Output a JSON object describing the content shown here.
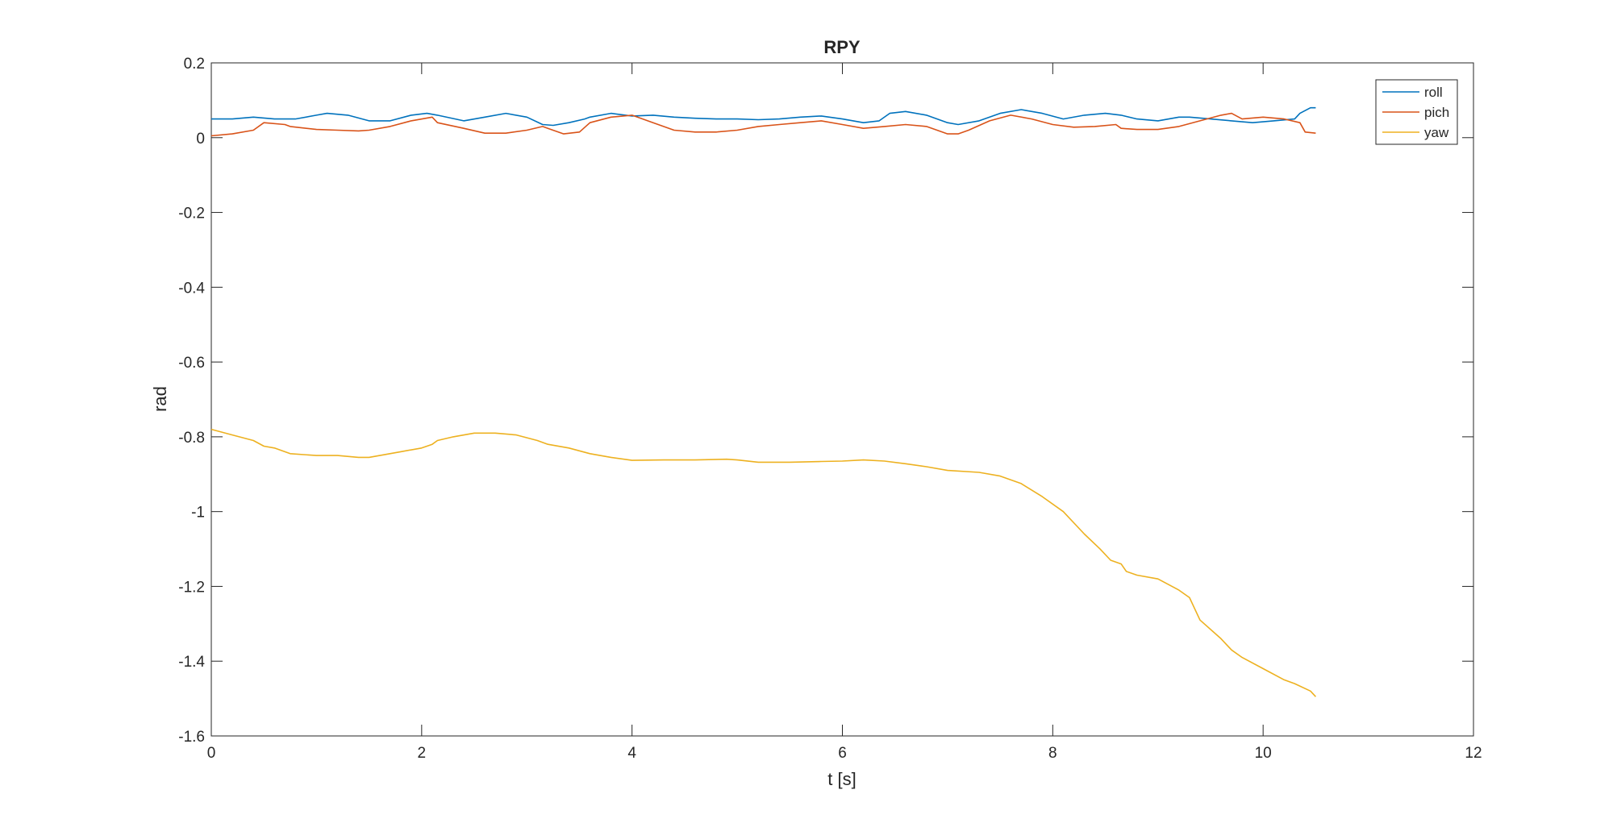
{
  "chart_data": {
    "type": "line",
    "title": "RPY",
    "xlabel": "t [s]",
    "ylabel": "rad",
    "xlim": [
      0,
      12
    ],
    "ylim": [
      -1.6,
      0.2
    ],
    "xticks": [
      0,
      2,
      4,
      6,
      8,
      10,
      12
    ],
    "xtick_labels": [
      "0",
      "2",
      "4",
      "6",
      "8",
      "10",
      "12"
    ],
    "yticks": [
      0.2,
      0,
      -0.2,
      -0.4,
      -0.6,
      -0.8,
      -1,
      -1.2,
      -1.4,
      -1.6
    ],
    "ytick_labels": [
      "0.2",
      "0",
      "-0.2",
      "-0.4",
      "-0.6",
      "-0.8",
      "-1",
      "-1.2",
      "-1.4",
      "-1.6"
    ],
    "grid": false,
    "legend_position": "top-right",
    "series": [
      {
        "name": "roll",
        "color": "#0072BD",
        "x": [
          0,
          0.2,
          0.4,
          0.6,
          0.8,
          1.0,
          1.1,
          1.3,
          1.5,
          1.7,
          1.9,
          2.05,
          2.15,
          2.4,
          2.6,
          2.8,
          3.0,
          3.15,
          3.25,
          3.4,
          3.55,
          3.6,
          3.8,
          4.0,
          4.2,
          4.4,
          4.6,
          4.8,
          5.0,
          5.2,
          5.4,
          5.6,
          5.8,
          6.0,
          6.2,
          6.35,
          6.45,
          6.6,
          6.8,
          7.0,
          7.1,
          7.3,
          7.5,
          7.7,
          7.9,
          8.1,
          8.3,
          8.5,
          8.65,
          8.8,
          9.0,
          9.2,
          9.3,
          9.5,
          9.7,
          9.9,
          10.1,
          10.3,
          10.35,
          10.45,
          10.5
        ],
        "values": [
          0.05,
          0.05,
          0.055,
          0.05,
          0.05,
          0.06,
          0.065,
          0.06,
          0.045,
          0.045,
          0.06,
          0.065,
          0.06,
          0.045,
          0.055,
          0.065,
          0.055,
          0.035,
          0.033,
          0.04,
          0.05,
          0.055,
          0.065,
          0.058,
          0.06,
          0.055,
          0.052,
          0.05,
          0.05,
          0.048,
          0.05,
          0.055,
          0.058,
          0.05,
          0.04,
          0.045,
          0.065,
          0.07,
          0.06,
          0.04,
          0.035,
          0.045,
          0.065,
          0.075,
          0.065,
          0.05,
          0.06,
          0.065,
          0.06,
          0.05,
          0.045,
          0.055,
          0.055,
          0.05,
          0.045,
          0.04,
          0.045,
          0.05,
          0.065,
          0.08,
          0.08
        ]
      },
      {
        "name": "pich",
        "color": "#D95319",
        "x": [
          0,
          0.2,
          0.4,
          0.5,
          0.7,
          0.75,
          1.0,
          1.2,
          1.4,
          1.5,
          1.7,
          1.9,
          2.1,
          2.15,
          2.4,
          2.6,
          2.8,
          3.0,
          3.15,
          3.2,
          3.35,
          3.5,
          3.6,
          3.8,
          4.0,
          4.2,
          4.4,
          4.6,
          4.8,
          5.0,
          5.2,
          5.4,
          5.6,
          5.8,
          6.0,
          6.2,
          6.4,
          6.6,
          6.8,
          6.9,
          7.0,
          7.1,
          7.2,
          7.4,
          7.6,
          7.8,
          8.0,
          8.2,
          8.4,
          8.6,
          8.65,
          8.8,
          9.0,
          9.2,
          9.4,
          9.6,
          9.7,
          9.8,
          10.0,
          10.2,
          10.35,
          10.4,
          10.5
        ],
        "values": [
          0.005,
          0.01,
          0.02,
          0.04,
          0.035,
          0.03,
          0.022,
          0.02,
          0.018,
          0.02,
          0.03,
          0.045,
          0.055,
          0.04,
          0.025,
          0.012,
          0.012,
          0.02,
          0.03,
          0.025,
          0.01,
          0.015,
          0.04,
          0.055,
          0.06,
          0.04,
          0.02,
          0.015,
          0.015,
          0.02,
          0.03,
          0.035,
          0.04,
          0.045,
          0.035,
          0.025,
          0.03,
          0.035,
          0.03,
          0.02,
          0.01,
          0.01,
          0.02,
          0.045,
          0.06,
          0.05,
          0.035,
          0.028,
          0.03,
          0.035,
          0.025,
          0.022,
          0.022,
          0.03,
          0.045,
          0.06,
          0.065,
          0.05,
          0.055,
          0.05,
          0.04,
          0.015,
          0.012
        ]
      },
      {
        "name": "yaw",
        "color": "#EDB120",
        "x": [
          0,
          0.2,
          0.4,
          0.5,
          0.6,
          0.75,
          1.0,
          1.2,
          1.4,
          1.5,
          1.8,
          2.0,
          2.1,
          2.15,
          2.3,
          2.5,
          2.7,
          2.9,
          3.1,
          3.2,
          3.4,
          3.6,
          3.8,
          4.0,
          4.3,
          4.6,
          4.9,
          5.0,
          5.2,
          5.5,
          5.8,
          6.0,
          6.2,
          6.4,
          6.6,
          6.8,
          7.0,
          7.3,
          7.5,
          7.7,
          7.9,
          8.1,
          8.3,
          8.45,
          8.55,
          8.65,
          8.7,
          8.8,
          9.0,
          9.2,
          9.3,
          9.35,
          9.4,
          9.6,
          9.7,
          9.8,
          10.0,
          10.2,
          10.3,
          10.45,
          10.5
        ],
        "values": [
          -0.78,
          -0.795,
          -0.81,
          -0.825,
          -0.83,
          -0.845,
          -0.85,
          -0.85,
          -0.855,
          -0.855,
          -0.84,
          -0.83,
          -0.82,
          -0.81,
          -0.8,
          -0.79,
          -0.79,
          -0.795,
          -0.81,
          -0.82,
          -0.83,
          -0.845,
          -0.855,
          -0.863,
          -0.862,
          -0.862,
          -0.86,
          -0.862,
          -0.868,
          -0.868,
          -0.866,
          -0.865,
          -0.862,
          -0.865,
          -0.872,
          -0.88,
          -0.89,
          -0.895,
          -0.905,
          -0.925,
          -0.96,
          -1.0,
          -1.06,
          -1.1,
          -1.13,
          -1.14,
          -1.16,
          -1.17,
          -1.18,
          -1.21,
          -1.23,
          -1.26,
          -1.29,
          -1.34,
          -1.37,
          -1.39,
          -1.42,
          -1.45,
          -1.46,
          -1.48,
          -1.495
        ]
      }
    ]
  }
}
